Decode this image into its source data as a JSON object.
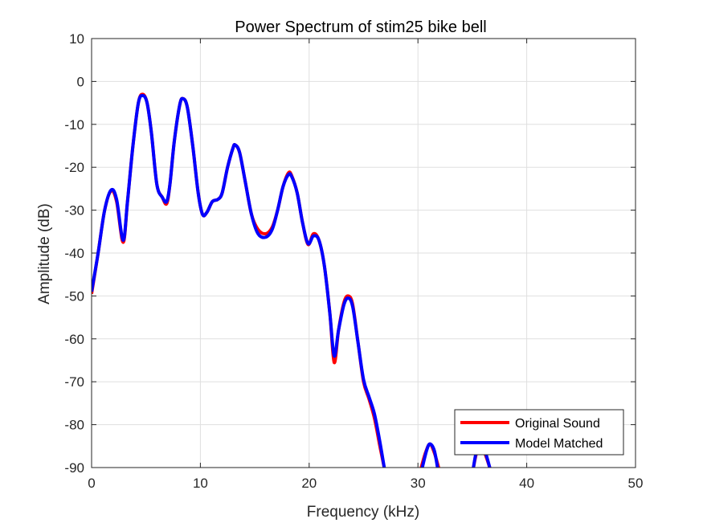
{
  "chart_data": {
    "type": "line",
    "title": "Power Spectrum of stim25 bike bell",
    "xlabel": "Frequency (kHz)",
    "ylabel": "Amplitude (dB)",
    "xlim": [
      0,
      50
    ],
    "ylim": [
      -90,
      10
    ],
    "xticks": [
      0,
      10,
      20,
      30,
      40,
      50
    ],
    "yticks": [
      10,
      0,
      -10,
      -20,
      -30,
      -40,
      -50,
      -60,
      -70,
      -80,
      -90
    ],
    "grid": true,
    "legend_position": "bottom-right",
    "series": [
      {
        "name": "Original Sound",
        "color": "#ff0000",
        "segments": [
          [
            [
              0,
              -49.5
            ],
            [
              0.6,
              -40
            ],
            [
              1.2,
              -30
            ],
            [
              1.8,
              -25.5
            ],
            [
              2.3,
              -28
            ],
            [
              2.9,
              -37.5
            ],
            [
              3.3,
              -28
            ],
            [
              3.8,
              -15
            ],
            [
              4.3,
              -5
            ],
            [
              4.7,
              -3
            ],
            [
              5.1,
              -5
            ],
            [
              5.5,
              -12
            ],
            [
              6.0,
              -24
            ],
            [
              6.5,
              -27
            ],
            [
              6.9,
              -28.5
            ],
            [
              7.2,
              -24
            ],
            [
              7.6,
              -14
            ],
            [
              8.1,
              -5.5
            ],
            [
              8.4,
              -4
            ],
            [
              8.8,
              -6
            ],
            [
              9.3,
              -15
            ],
            [
              9.8,
              -26
            ],
            [
              10.2,
              -31
            ],
            [
              10.6,
              -30.5
            ],
            [
              11.1,
              -28
            ],
            [
              11.6,
              -27.5
            ],
            [
              12.0,
              -26
            ],
            [
              12.5,
              -20
            ],
            [
              13.0,
              -15.5
            ],
            [
              13.2,
              -14.8
            ],
            [
              13.6,
              -16.5
            ],
            [
              14.1,
              -23
            ],
            [
              14.7,
              -31
            ],
            [
              15.3,
              -34.5
            ],
            [
              16.0,
              -35.5
            ],
            [
              16.6,
              -34
            ],
            [
              17.1,
              -30
            ],
            [
              17.6,
              -24.5
            ],
            [
              18.1,
              -21.3
            ],
            [
              18.4,
              -22
            ],
            [
              18.9,
              -26
            ],
            [
              19.4,
              -33
            ],
            [
              19.9,
              -38
            ],
            [
              20.4,
              -35.5
            ],
            [
              20.9,
              -37
            ],
            [
              21.4,
              -43
            ],
            [
              21.9,
              -54
            ],
            [
              22.3,
              -65.5
            ],
            [
              22.7,
              -58
            ],
            [
              23.2,
              -51.5
            ],
            [
              23.6,
              -50
            ],
            [
              24.0,
              -52
            ],
            [
              24.5,
              -61
            ],
            [
              25.0,
              -70
            ],
            [
              25.5,
              -74
            ],
            [
              26.0,
              -78.5
            ],
            [
              26.5,
              -85
            ],
            [
              26.9,
              -90
            ]
          ],
          [
            [
              30.3,
              -90
            ],
            [
              30.7,
              -86.5
            ],
            [
              31.1,
              -84.5
            ],
            [
              31.5,
              -86.5
            ],
            [
              31.9,
              -90
            ]
          ],
          [
            [
              35.1,
              -90
            ],
            [
              35.4,
              -86.5
            ],
            [
              35.8,
              -85
            ],
            [
              36.2,
              -87
            ],
            [
              36.6,
              -90
            ]
          ]
        ]
      },
      {
        "name": "Model Matched",
        "color": "#0000ff",
        "segments": [
          [
            [
              0,
              -49
            ],
            [
              0.6,
              -40
            ],
            [
              1.2,
              -30
            ],
            [
              1.8,
              -25.3
            ],
            [
              2.3,
              -27.5
            ],
            [
              2.9,
              -37
            ],
            [
              3.3,
              -28
            ],
            [
              3.8,
              -15
            ],
            [
              4.3,
              -5
            ],
            [
              4.7,
              -3.3
            ],
            [
              5.1,
              -5
            ],
            [
              5.5,
              -12
            ],
            [
              6.0,
              -24
            ],
            [
              6.5,
              -27
            ],
            [
              6.9,
              -28
            ],
            [
              7.2,
              -24
            ],
            [
              7.6,
              -14
            ],
            [
              8.1,
              -5.5
            ],
            [
              8.4,
              -4
            ],
            [
              8.8,
              -6
            ],
            [
              9.3,
              -15
            ],
            [
              9.8,
              -26
            ],
            [
              10.2,
              -31
            ],
            [
              10.6,
              -30.5
            ],
            [
              11.1,
              -28
            ],
            [
              11.6,
              -27.5
            ],
            [
              12.0,
              -26
            ],
            [
              12.5,
              -20
            ],
            [
              13.0,
              -15.5
            ],
            [
              13.2,
              -14.8
            ],
            [
              13.6,
              -16.5
            ],
            [
              14.1,
              -23
            ],
            [
              14.7,
              -31
            ],
            [
              15.3,
              -35.5
            ],
            [
              16.0,
              -36.3
            ],
            [
              16.6,
              -34.5
            ],
            [
              17.1,
              -30
            ],
            [
              17.6,
              -24.5
            ],
            [
              18.1,
              -21.7
            ],
            [
              18.4,
              -22.2
            ],
            [
              18.9,
              -26
            ],
            [
              19.4,
              -33
            ],
            [
              19.9,
              -37.8
            ],
            [
              20.4,
              -36
            ],
            [
              20.9,
              -37
            ],
            [
              21.4,
              -43
            ],
            [
              21.9,
              -54
            ],
            [
              22.3,
              -64
            ],
            [
              22.7,
              -58
            ],
            [
              23.2,
              -52
            ],
            [
              23.6,
              -50.5
            ],
            [
              24.0,
              -52.5
            ],
            [
              24.5,
              -61
            ],
            [
              25.0,
              -69.5
            ],
            [
              25.5,
              -73.5
            ],
            [
              26.0,
              -77.5
            ],
            [
              26.5,
              -84
            ],
            [
              26.9,
              -90
            ]
          ],
          [
            [
              30.4,
              -90
            ],
            [
              30.8,
              -86
            ],
            [
              31.1,
              -84.5
            ],
            [
              31.5,
              -86
            ],
            [
              31.8,
              -90
            ]
          ],
          [
            [
              35.1,
              -90
            ],
            [
              35.4,
              -86
            ],
            [
              35.8,
              -84.8
            ],
            [
              36.2,
              -86.5
            ],
            [
              36.6,
              -90
            ]
          ]
        ]
      }
    ]
  }
}
